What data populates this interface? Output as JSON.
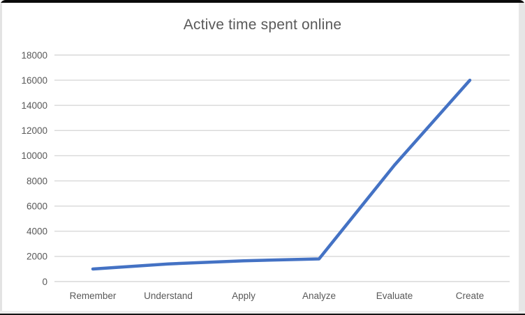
{
  "chart_data": {
    "type": "line",
    "title": "Active time spent online",
    "categories": [
      "Remember",
      "Understand",
      "Apply",
      "Analyze",
      "Evaluate",
      "Create"
    ],
    "values": [
      1000,
      1400,
      1650,
      1800,
      9250,
      16000
    ],
    "xlabel": "",
    "ylabel": "",
    "ylim": [
      0,
      18000
    ],
    "ytick_step": 2000,
    "grid": "horizontal",
    "legend": "none",
    "colors": {
      "line": "#4472C4",
      "gridline": "#d8d8d8",
      "text": "#595959"
    }
  }
}
